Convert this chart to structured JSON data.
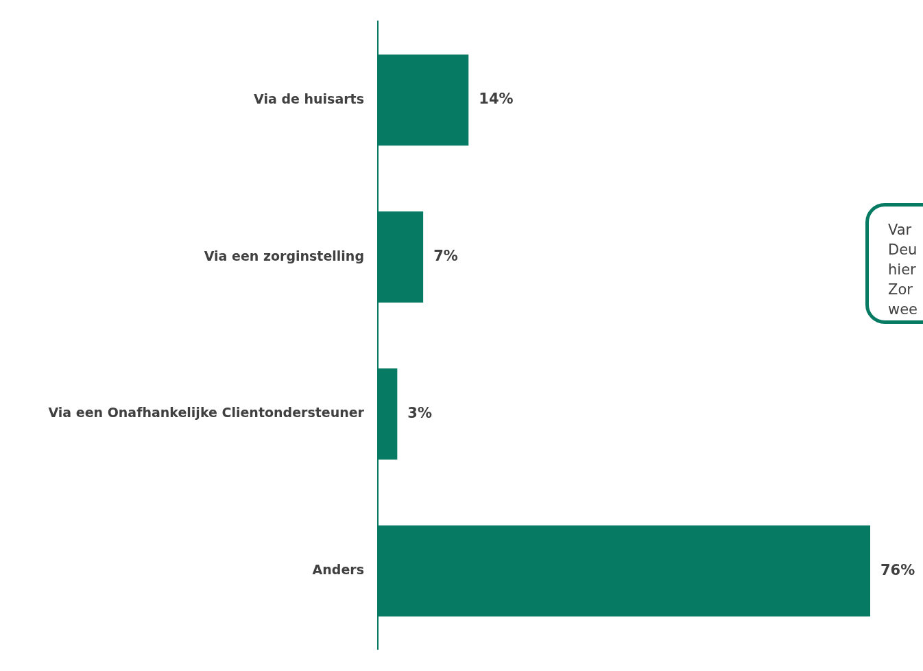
{
  "chart_data": {
    "type": "bar",
    "orientation": "horizontal",
    "categories": [
      "Via de huisarts",
      "Via een zorginstelling",
      "Via een Onafhankelijke Clientondersteuner",
      "Anders"
    ],
    "values": [
      14,
      7,
      3,
      76
    ],
    "value_labels": [
      "14%",
      "7%",
      "3%",
      "76%"
    ],
    "color": "#077a63",
    "tick_labels": "y",
    "legend": false,
    "annotations": [
      "Var\nDeu\nhier\nZor\nwee"
    ]
  }
}
